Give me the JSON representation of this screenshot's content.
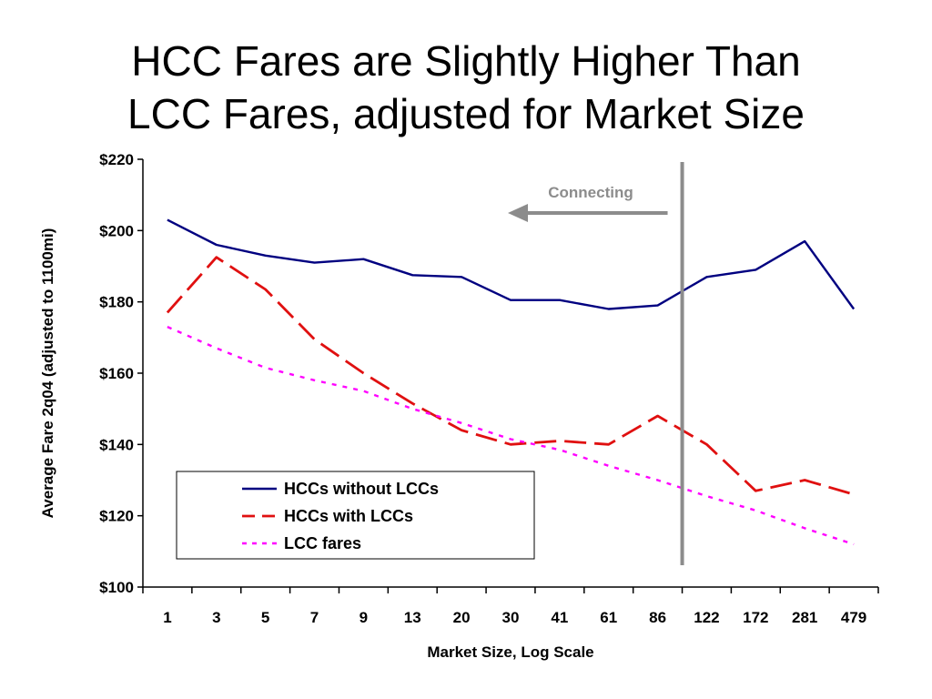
{
  "slide": {
    "title_line1": "HCC Fares are Slightly Higher Than",
    "title_line2": "LCC Fares, adjusted for Market Size"
  },
  "chart_data": {
    "type": "line",
    "xlabel": "Market Size, Log Scale",
    "ylabel": "Average Fare 2q04 (adjusted to 1100mi)",
    "categories": [
      "1",
      "3",
      "5",
      "7",
      "9",
      "13",
      "20",
      "30",
      "41",
      "61",
      "86",
      "122",
      "172",
      "281",
      "479"
    ],
    "ylim": [
      100,
      220
    ],
    "yticks": [
      100,
      120,
      140,
      160,
      180,
      200,
      220
    ],
    "ytick_labels": [
      "$100",
      "$120",
      "$140",
      "$160",
      "$180",
      "$200",
      "$220"
    ],
    "grid": false,
    "legend_position": "bottom-left",
    "series": [
      {
        "name": "HCCs without LCCs",
        "color": "#000080",
        "style": "solid",
        "values": [
          203,
          196,
          193,
          191,
          192,
          187.5,
          187,
          180.5,
          180.5,
          178,
          179,
          187,
          189,
          197,
          178
        ]
      },
      {
        "name": "HCCs with LCCs",
        "color": "#e01010",
        "style": "dashed",
        "values": [
          177,
          192.5,
          183.5,
          169.5,
          160,
          151.5,
          144,
          140,
          141,
          140,
          148,
          140,
          127,
          130,
          126
        ]
      },
      {
        "name": "LCC fares",
        "color": "#ff00ff",
        "style": "dotted",
        "values": [
          173,
          167,
          161.5,
          158,
          155,
          150,
          146,
          141.5,
          138.5,
          134,
          130,
          125.5,
          121.5,
          116.5,
          112
        ]
      }
    ],
    "annotation": {
      "text": "Connecting",
      "color": "#8c8c8c",
      "direction": "left",
      "divider_between_categories": [
        "86",
        "122"
      ]
    }
  }
}
